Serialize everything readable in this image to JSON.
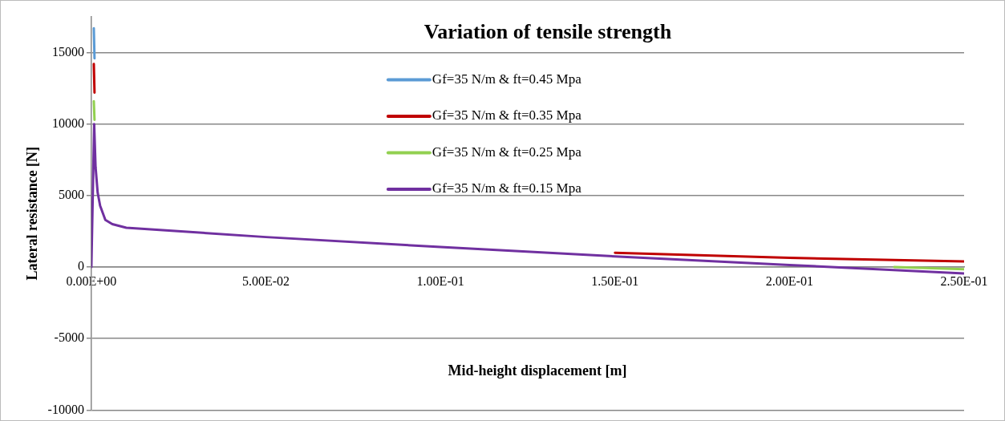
{
  "chart_data": {
    "type": "line",
    "title": "Variation of tensile strength",
    "xlabel": "Mid-height displacement [m]",
    "ylabel": "Lateral resistance [N]",
    "series": [
      {
        "name": "Gf=35 N/m & ft=0.45 Mpa",
        "color": "#5b9bd5",
        "x": [
          0.0007,
          0.0009
        ],
        "values": [
          16700,
          14600
        ]
      },
      {
        "name": "Gf=35 N/m & ft=0.35 Mpa",
        "color": "#c00000",
        "x": [
          0.0007,
          0.0009,
          0.1,
          0.15,
          0.2,
          0.25
        ],
        "values": [
          14200,
          12200,
          null,
          1000,
          650,
          400
        ]
      },
      {
        "name": "Gf=35 N/m & ft=0.25 Mpa",
        "color": "#92d050",
        "x": [
          0.0007,
          0.0009,
          0.1,
          0.23,
          0.25
        ],
        "values": [
          11600,
          10300,
          null,
          0,
          -150
        ]
      },
      {
        "name": "Gf=35 N/m & ft=0.15 Mpa",
        "color": "#7030a0",
        "x": [
          0,
          0.0004,
          0.0008,
          0.0012,
          0.0018,
          0.0025,
          0.004,
          0.006,
          0.01,
          0.05,
          0.1,
          0.15,
          0.2,
          0.25
        ],
        "values": [
          0,
          5000,
          10000,
          7000,
          5200,
          4300,
          3300,
          3000,
          2750,
          2100,
          1400,
          750,
          150,
          -450
        ]
      }
    ],
    "xlim": [
      0,
      0.25
    ],
    "xticks": [
      {
        "value": 0,
        "label": "0.00E+00"
      },
      {
        "value": 0.05,
        "label": "5.00E-02"
      },
      {
        "value": 0.1,
        "label": "1.00E-01"
      },
      {
        "value": 0.15,
        "label": "1.50E-01"
      },
      {
        "value": 0.2,
        "label": "2.00E-01"
      },
      {
        "value": 0.25,
        "label": "2.50E-01"
      }
    ],
    "ylim": [
      -10000,
      17500
    ],
    "yticks": [
      -10000,
      -5000,
      0,
      5000,
      10000,
      15000
    ],
    "grid": "y",
    "legend": "top",
    "marker": "none",
    "line_style": "solid"
  }
}
